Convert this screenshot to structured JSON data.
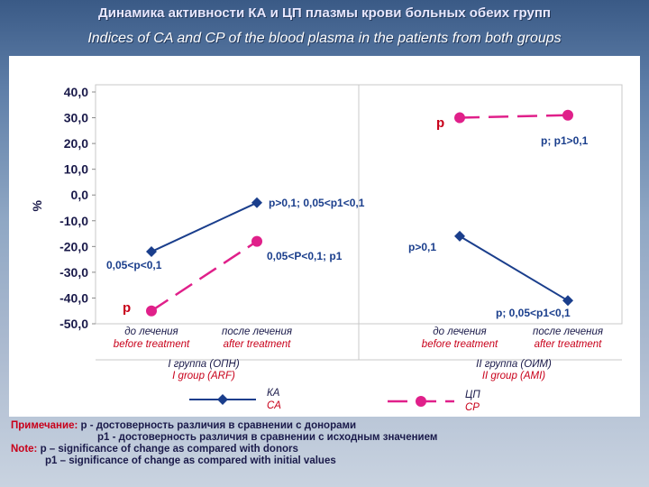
{
  "header": {
    "title_ru": "Динамика активности КА и ЦП плазмы крови больных обеих групп",
    "title_en": "Indices of CA and CP of the blood plasma in the patients from both groups"
  },
  "chart_data": {
    "type": "line",
    "ylabel": "%",
    "ylim": [
      -50,
      40
    ],
    "yticks": [
      "40,0",
      "30,0",
      "20,0",
      "10,0",
      "0,0",
      "-10,0",
      "-20,0",
      "-30,0",
      "-40,0",
      "-50,0"
    ],
    "ytick_values": [
      40,
      30,
      20,
      10,
      0,
      -10,
      -20,
      -30,
      -40,
      -50
    ],
    "categories": [
      {
        "ru": "до лечения",
        "en": "before treatment"
      },
      {
        "ru": "после лечения",
        "en": "after treatment"
      },
      {
        "ru": "до лечения",
        "en": "before treatment"
      },
      {
        "ru": "после лечения",
        "en": "after treatment"
      }
    ],
    "groups": [
      {
        "ru": "I группа (ОПН)",
        "en": "I group (ARF)"
      },
      {
        "ru": "II группа (ОИМ)",
        "en": "II group (AMI)"
      }
    ],
    "series": [
      {
        "name_ru": "КА",
        "name_en": "CA",
        "color": "#1a3e8c",
        "marker": "diamond",
        "values": [
          [
            -22,
            -3
          ],
          [
            -16,
            -41
          ]
        ]
      },
      {
        "name_ru": "ЦП",
        "name_en": "CP",
        "color": "#e0208a",
        "marker": "circle",
        "values": [
          [
            -45,
            -18
          ],
          [
            30,
            31
          ]
        ]
      }
    ],
    "annotations": [
      {
        "text": "p",
        "color": "#c8001a"
      },
      {
        "text": "p; p1>0,1",
        "color": "#1a3e8c"
      },
      {
        "text": "p>0,1; 0,05<p1<0,1",
        "color": "#1a3e8c"
      },
      {
        "text": "0,05<p<0,1",
        "color": "#1a3e8c"
      },
      {
        "text": "0,05<P<0,1; p1",
        "color": "#1a3e8c"
      },
      {
        "text": "p>0,1",
        "color": "#1a3e8c"
      },
      {
        "text": "p",
        "color": "#c8001a"
      },
      {
        "text": "p; 0,05<p1<0,1",
        "color": "#1a3e8c"
      }
    ]
  },
  "notes": {
    "label_ru": "Примечание:",
    "line1_ru": " р - достоверность различия в сравнении с донорами",
    "line2_ru": "р1 - достоверность различия в сравнении с исходным значением",
    "label_en": "Note:",
    "line1_en": " p – significance of change as compared with donors",
    "line2_en": "p1 – significance of change as compared with initial values"
  }
}
